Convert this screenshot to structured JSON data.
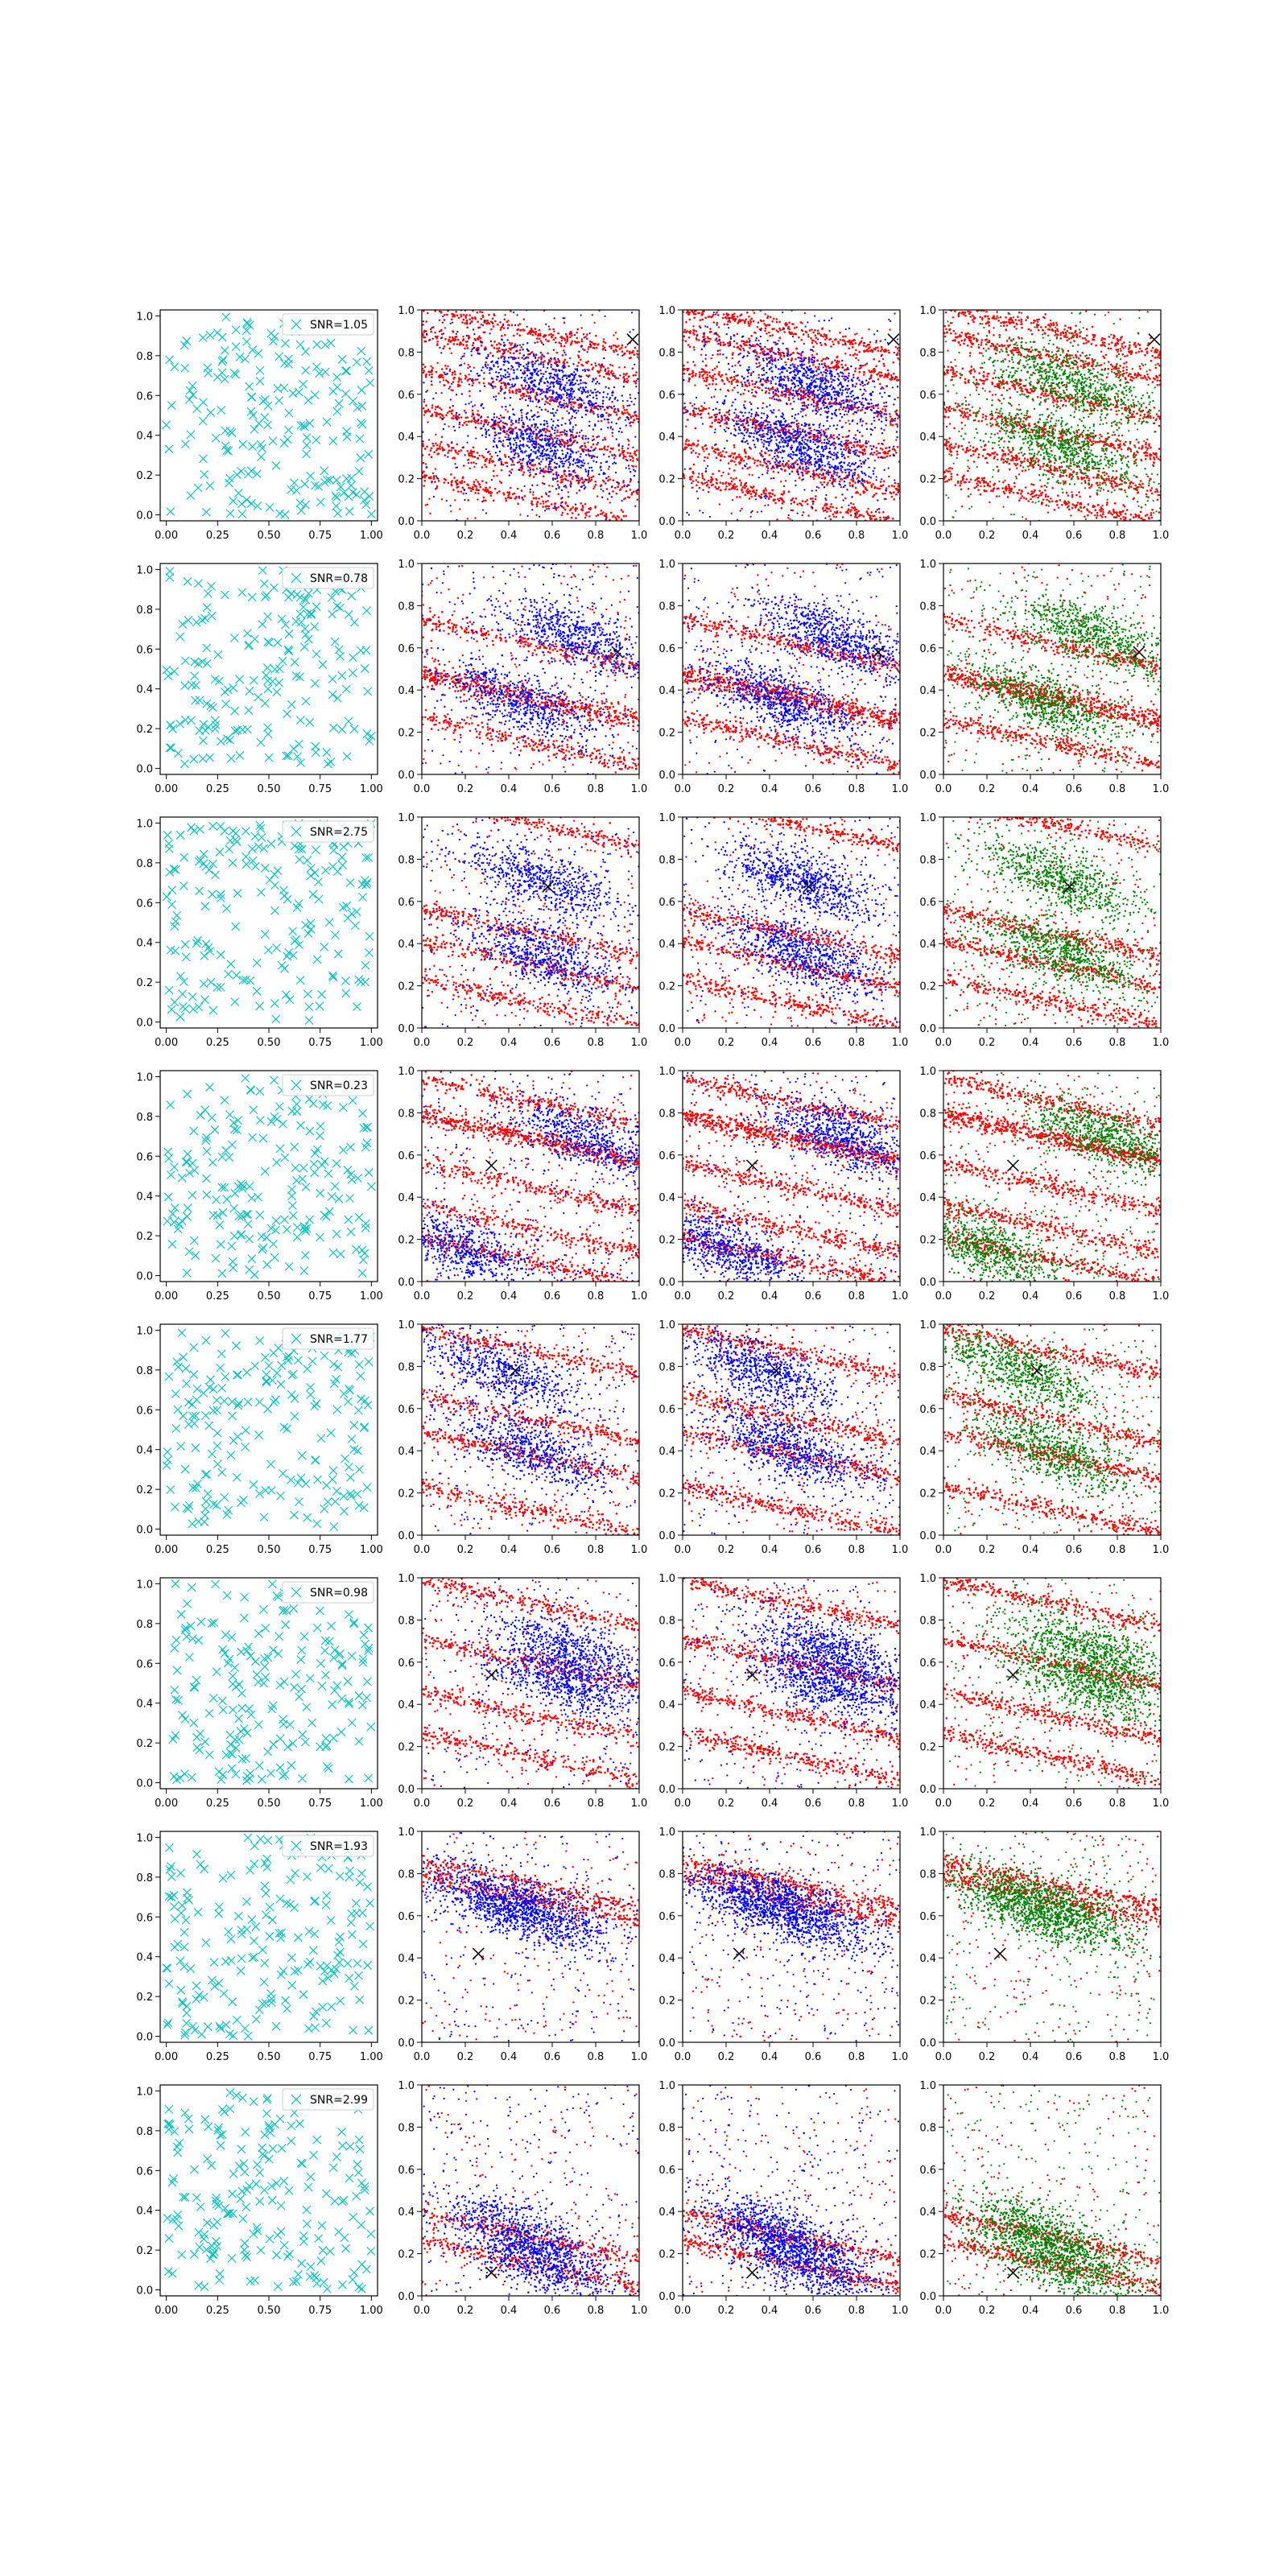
{
  "figure": {
    "title": "",
    "rows": 8,
    "cols": 4,
    "marker_symbol": "×"
  },
  "colors": {
    "cyan_marker": "#00bfbf",
    "red_points": "#ff0000",
    "blue_points": "#0000ff",
    "green_points": "#008000",
    "truth_marker": "#000000",
    "axes": "#000000",
    "background": "#ffffff"
  },
  "chart_data": {
    "type": "scatter",
    "panel_types": [
      "uniform-cross-scatter-with-snr-legend",
      "red-blue-points",
      "red-blue-points",
      "red-green-points"
    ],
    "column_descriptions": [
      "uniform random crosses",
      "red + blue point clouds",
      "red stripes + blue clusters",
      "red stripes + green clusters"
    ],
    "first_column_axes": {
      "xlim": [
        -0.03,
        1.03
      ],
      "ylim": [
        -0.03,
        1.03
      ],
      "xticks": [
        "0.00",
        "0.25",
        "0.50",
        "0.75",
        "1.00"
      ],
      "yticks": [
        "0.0",
        "0.2",
        "0.4",
        "0.6",
        "0.8",
        "1.0"
      ]
    },
    "other_axes": {
      "xlim": [
        0,
        1
      ],
      "ylim": [
        0,
        1
      ],
      "xticks": [
        "0.0",
        "0.2",
        "0.4",
        "0.6",
        "0.8",
        "1.0"
      ],
      "yticks": [
        "0.0",
        "0.2",
        "0.4",
        "0.6",
        "0.8",
        "1.0"
      ]
    },
    "rows": [
      {
        "legend": "SNR=1.05",
        "truth": [
          0.97,
          0.86
        ],
        "stripes": [
          0.9,
          0.78,
          0.6,
          0.42,
          0.25,
          0.1
        ],
        "clusters": [
          [
            0.6,
            0.65
          ],
          [
            0.55,
            0.35
          ]
        ]
      },
      {
        "legend": "SNR=0.78",
        "truth": [
          0.9,
          0.58
        ],
        "stripes": [
          0.62,
          0.38,
          0.35,
          0.15
        ],
        "clusters": [
          [
            0.45,
            0.35
          ],
          [
            0.7,
            0.65
          ]
        ]
      },
      {
        "legend": "SNR=2.75",
        "truth": [
          0.58,
          0.67
        ],
        "stripes": [
          0.97,
          0.45,
          0.3,
          0.12
        ],
        "clusters": [
          [
            0.55,
            0.7
          ],
          [
            0.55,
            0.35
          ]
        ]
      },
      {
        "legend": "SNR=0.23",
        "truth": [
          0.32,
          0.55
        ],
        "stripes": [
          0.85,
          0.68,
          0.45,
          0.25,
          0.1
        ],
        "clusters": [
          [
            0.75,
            0.68
          ],
          [
            0.2,
            0.15
          ]
        ]
      },
      {
        "legend": "SNR=1.77",
        "truth": [
          0.43,
          0.78
        ],
        "stripes": [
          0.87,
          0.55,
          0.38,
          0.12
        ],
        "clusters": [
          [
            0.35,
            0.78
          ],
          [
            0.5,
            0.4
          ]
        ]
      },
      {
        "legend": "SNR=0.98",
        "truth": [
          0.32,
          0.54
        ],
        "stripes": [
          0.88,
          0.6,
          0.35,
          0.15
        ],
        "clusters": [
          [
            0.65,
            0.5
          ],
          [
            0.7,
            0.65
          ]
        ]
      },
      {
        "legend": "SNR=1.93",
        "truth": [
          0.26,
          0.42
        ],
        "stripes": [
          0.75,
          0.68
        ],
        "clusters": [
          [
            0.35,
            0.65
          ],
          [
            0.55,
            0.62
          ]
        ]
      },
      {
        "legend": "SNR=2.99",
        "truth": [
          0.32,
          0.11
        ],
        "stripes": [
          0.28,
          0.15
        ],
        "clusters": [
          [
            0.45,
            0.3
          ],
          [
            0.55,
            0.15
          ]
        ]
      }
    ]
  }
}
